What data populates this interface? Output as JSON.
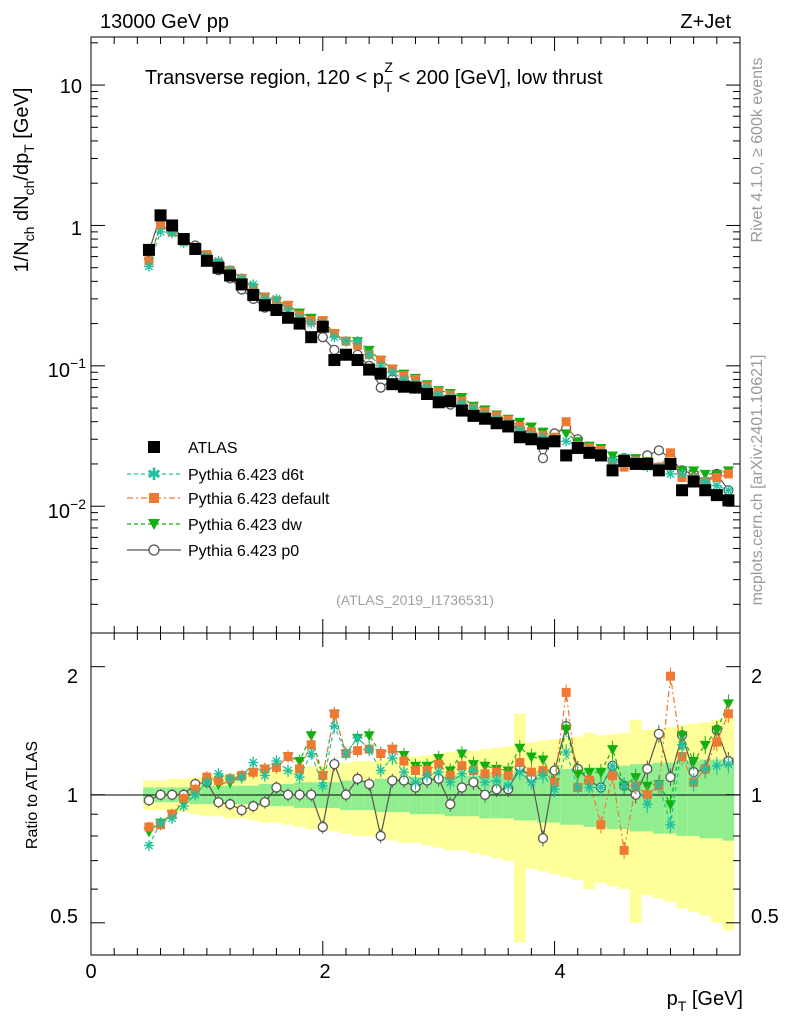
{
  "header": {
    "left": "13000 GeV pp",
    "right": "Z+Jet"
  },
  "side": {
    "rivet": "Rivet 4.1.0, ≥ 600k events",
    "mcplots": "mcplots.cern.ch [arXiv:2401.10621]"
  },
  "chart_data": [
    {
      "type": "scatter",
      "panel": "main",
      "title": {
        "prefix": "Transverse region, 120 < p",
        "sup": "Z",
        "sub": "T",
        "suffix": " < 200 [GeV], low thrust"
      },
      "ylabel": "1/N_ch dN_ch/dp_T [GeV]",
      "yscale": "log",
      "ylim": [
        0.00125,
        22
      ],
      "xlim": [
        0,
        5.6
      ],
      "watermark": "(ATLAS_2019_I1736531)",
      "ytick_labels": {
        "t10": "10",
        "t1": "1",
        "t01_base": "10",
        "t01_exp": "−1",
        "t001_base": "10",
        "t001_exp": "−2"
      },
      "x": [
        0.5,
        0.6,
        0.7,
        0.8,
        0.9,
        1.0,
        1.1,
        1.2,
        1.3,
        1.4,
        1.5,
        1.6,
        1.7,
        1.8,
        1.9,
        2.0,
        2.1,
        2.2,
        2.3,
        2.4,
        2.5,
        2.6,
        2.7,
        2.8,
        2.9,
        3.0,
        3.1,
        3.2,
        3.3,
        3.4,
        3.5,
        3.6,
        3.7,
        3.8,
        3.9,
        4.0,
        4.1,
        4.2,
        4.3,
        4.4,
        4.5,
        4.6,
        4.7,
        4.8,
        4.9,
        5.0,
        5.1,
        5.2,
        5.3,
        5.4,
        5.5
      ],
      "series": [
        {
          "name": "ATLAS",
          "color": "#000000",
          "values": [
            0.67,
            1.18,
            1.0,
            0.8,
            0.68,
            0.56,
            0.5,
            0.44,
            0.38,
            0.32,
            0.27,
            0.25,
            0.22,
            0.2,
            0.16,
            0.19,
            0.11,
            0.12,
            0.11,
            0.094,
            0.088,
            0.074,
            0.071,
            0.07,
            0.063,
            0.055,
            0.056,
            0.048,
            0.044,
            0.042,
            0.039,
            0.037,
            0.031,
            0.03,
            0.028,
            0.029,
            0.023,
            0.026,
            0.024,
            0.023,
            0.018,
            0.021,
            0.02,
            0.02,
            0.018,
            0.02,
            0.013,
            0.015,
            0.013,
            0.012,
            0.011
          ]
        },
        {
          "name": "Pythia 6.423 d6t",
          "color": "#20c0a0",
          "values": [
            0.51,
            0.9,
            0.88,
            0.75,
            0.68,
            0.6,
            0.56,
            0.48,
            0.42,
            0.38,
            0.3,
            0.3,
            0.25,
            0.22,
            0.2,
            0.2,
            0.16,
            0.15,
            0.15,
            0.12,
            0.1,
            0.09,
            0.08,
            0.075,
            0.07,
            0.062,
            0.06,
            0.054,
            0.05,
            0.045,
            0.042,
            0.039,
            0.035,
            0.032,
            0.031,
            0.03,
            0.029,
            0.027,
            0.025,
            0.024,
            0.021,
            0.022,
            0.021,
            0.019,
            0.019,
            0.017,
            0.017,
            0.016,
            0.015,
            0.014,
            0.013
          ]
        },
        {
          "name": "Pythia 6.423 default",
          "color": "#f07830",
          "values": [
            0.56,
            1.0,
            0.9,
            0.78,
            0.7,
            0.62,
            0.54,
            0.48,
            0.42,
            0.36,
            0.31,
            0.29,
            0.27,
            0.23,
            0.21,
            0.21,
            0.17,
            0.15,
            0.14,
            0.12,
            0.11,
            0.095,
            0.085,
            0.08,
            0.072,
            0.065,
            0.062,
            0.056,
            0.05,
            0.047,
            0.044,
            0.041,
            0.037,
            0.034,
            0.032,
            0.031,
            0.04,
            0.027,
            0.026,
            0.025,
            0.02,
            0.019,
            0.021,
            0.02,
            0.019,
            0.024,
            0.016,
            0.016,
            0.015,
            0.016,
            0.017
          ]
        },
        {
          "name": "Pythia 6.423 dw",
          "color": "#10b010",
          "values": [
            0.55,
            1.02,
            0.9,
            0.77,
            0.69,
            0.6,
            0.53,
            0.47,
            0.42,
            0.36,
            0.31,
            0.29,
            0.27,
            0.24,
            0.22,
            0.21,
            0.17,
            0.15,
            0.15,
            0.13,
            0.11,
            0.095,
            0.088,
            0.082,
            0.074,
            0.067,
            0.064,
            0.06,
            0.052,
            0.049,
            0.045,
            0.042,
            0.04,
            0.037,
            0.034,
            0.031,
            0.033,
            0.029,
            0.027,
            0.026,
            0.023,
            0.022,
            0.022,
            0.021,
            0.019,
            0.019,
            0.018,
            0.018,
            0.017,
            0.017,
            0.018
          ]
        },
        {
          "name": "Pythia 6.423 p0",
          "color": "#555555",
          "values": [
            0.65,
            1.18,
            1.0,
            0.8,
            0.72,
            0.6,
            0.48,
            0.42,
            0.35,
            0.3,
            0.26,
            0.26,
            0.22,
            0.2,
            0.16,
            0.16,
            0.13,
            0.12,
            0.12,
            0.1,
            0.07,
            0.08,
            0.077,
            0.073,
            0.068,
            0.06,
            0.053,
            0.05,
            0.047,
            0.042,
            0.04,
            0.038,
            0.036,
            0.033,
            0.022,
            0.033,
            0.036,
            0.03,
            0.026,
            0.024,
            0.021,
            0.022,
            0.02,
            0.023,
            0.025,
            0.022,
            0.018,
            0.017,
            0.015,
            0.017,
            0.013
          ]
        }
      ]
    },
    {
      "type": "scatter",
      "panel": "ratio",
      "ylabel": "Ratio to ATLAS",
      "yscale": "log",
      "ylim": [
        0.42,
        2.4
      ],
      "xlabel": "p_T [GeV]",
      "reference": 1,
      "ytick_labels": {
        "t2": "2",
        "t1": "1",
        "t05": "0.5"
      },
      "xtick_labels": {
        "t0": "0",
        "t2": "2",
        "t4": "4"
      },
      "band_inner_halfwidth": [
        0.04,
        0.04,
        0.04,
        0.04,
        0.05,
        0.05,
        0.05,
        0.05,
        0.05,
        0.05,
        0.06,
        0.06,
        0.06,
        0.07,
        0.07,
        0.07,
        0.07,
        0.08,
        0.08,
        0.08,
        0.09,
        0.09,
        0.09,
        0.1,
        0.1,
        0.1,
        0.11,
        0.11,
        0.11,
        0.12,
        0.12,
        0.12,
        0.13,
        0.13,
        0.14,
        0.14,
        0.15,
        0.15,
        0.16,
        0.16,
        0.17,
        0.17,
        0.18,
        0.18,
        0.19,
        0.19,
        0.2,
        0.2,
        0.21,
        0.21,
        0.22
      ],
      "band_outer_halfwidth": [
        0.08,
        0.08,
        0.09,
        0.09,
        0.1,
        0.11,
        0.11,
        0.12,
        0.12,
        0.13,
        0.14,
        0.14,
        0.15,
        0.16,
        0.17,
        0.17,
        0.18,
        0.19,
        0.2,
        0.2,
        0.21,
        0.22,
        0.23,
        0.23,
        0.24,
        0.25,
        0.26,
        0.26,
        0.27,
        0.28,
        0.29,
        0.3,
        0.55,
        0.33,
        0.34,
        0.35,
        0.36,
        0.37,
        0.4,
        0.38,
        0.39,
        0.4,
        0.5,
        0.42,
        0.43,
        0.44,
        0.46,
        0.47,
        0.48,
        0.5,
        0.52
      ],
      "series": [
        {
          "name": "Pythia 6.423 d6t",
          "color": "#20c0a0",
          "values": [
            0.76,
            0.86,
            0.88,
            0.94,
            1.0,
            1.07,
            1.12,
            1.09,
            1.1,
            1.19,
            1.11,
            1.2,
            1.14,
            1.1,
            1.25,
            1.05,
            1.45,
            1.25,
            1.36,
            1.28,
            1.14,
            1.22,
            1.13,
            1.07,
            1.11,
            1.13,
            1.07,
            1.12,
            1.14,
            1.07,
            1.08,
            1.05,
            1.13,
            1.07,
            1.11,
            1.03,
            1.26,
            1.04,
            1.04,
            1.04,
            1.17,
            1.05,
            1.05,
            0.95,
            1.06,
            0.85,
            1.31,
            1.07,
            1.15,
            1.17,
            1.18
          ]
        },
        {
          "name": "Pythia 6.423 default",
          "color": "#f07830",
          "values": [
            0.84,
            0.85,
            0.9,
            0.98,
            1.03,
            1.1,
            1.08,
            1.09,
            1.11,
            1.13,
            1.15,
            1.16,
            1.23,
            1.15,
            1.31,
            1.11,
            1.55,
            1.25,
            1.27,
            1.28,
            1.25,
            1.28,
            1.2,
            1.14,
            1.14,
            1.18,
            1.11,
            1.17,
            1.14,
            1.12,
            1.13,
            1.11,
            1.19,
            1.13,
            1.14,
            1.07,
            1.74,
            1.04,
            1.08,
            0.85,
            1.11,
            0.74,
            1.05,
            1.0,
            1.05,
            1.9,
            1.23,
            1.07,
            1.15,
            1.33,
            1.55
          ]
        },
        {
          "name": "Pythia 6.423 dw",
          "color": "#10b010",
          "values": [
            0.82,
            0.86,
            0.9,
            0.96,
            1.01,
            1.07,
            1.06,
            1.07,
            1.1,
            1.13,
            1.15,
            1.16,
            1.23,
            1.2,
            1.38,
            1.11,
            1.55,
            1.25,
            1.36,
            1.38,
            1.25,
            1.28,
            1.24,
            1.17,
            1.17,
            1.22,
            1.14,
            1.25,
            1.18,
            1.17,
            1.15,
            1.14,
            1.29,
            1.23,
            1.21,
            1.07,
            1.43,
            1.12,
            1.13,
            1.13,
            1.28,
            1.05,
            1.1,
            1.05,
            1.06,
            0.95,
            1.38,
            1.2,
            1.31,
            1.42,
            1.64
          ]
        },
        {
          "name": "Pythia 6.423 p0",
          "color": "#555555",
          "values": [
            0.97,
            1.0,
            1.0,
            1.0,
            1.06,
            1.07,
            0.96,
            0.95,
            0.92,
            0.94,
            0.96,
            1.04,
            1.0,
            1.0,
            1.0,
            0.84,
            1.18,
            1.0,
            1.09,
            1.06,
            0.8,
            1.08,
            1.08,
            1.04,
            1.08,
            1.09,
            0.95,
            1.04,
            1.07,
            1.0,
            1.03,
            1.03,
            1.16,
            1.1,
            0.79,
            1.14,
            1.45,
            1.15,
            1.08,
            1.04,
            1.17,
            1.05,
            1.0,
            1.15,
            1.39,
            1.1,
            1.38,
            1.13,
            1.15,
            1.42,
            1.2
          ]
        }
      ]
    }
  ]
}
